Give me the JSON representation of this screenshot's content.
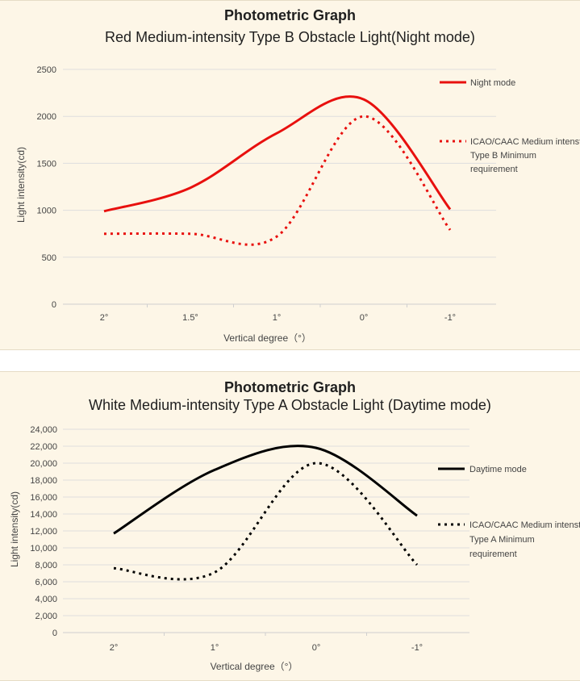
{
  "chart_data": [
    {
      "type": "line",
      "title": "Photometric Graph",
      "subtitle": "Red Medium-intensity Type B Obstacle Light(Night mode)",
      "xlabel": "Vertical degree（°）",
      "ylabel": "Light intensity(cd)",
      "x_ticks": [
        "2°",
        "1.5°",
        "1°",
        "0°",
        "-1°"
      ],
      "y_ticks": [
        "0",
        "500",
        "1000",
        "1500",
        "2000",
        "2500"
      ],
      "ylim": [
        0,
        2500
      ],
      "grid": true,
      "legend_position": "right",
      "colors": {
        "main": "#e8100e",
        "min": "#e8100e"
      },
      "series": [
        {
          "name": "Night mode",
          "style": "solid",
          "x": [
            2,
            1.5,
            1,
            0,
            -1
          ],
          "values": [
            990,
            1240,
            1820,
            2180,
            1010
          ]
        },
        {
          "name": "ICAO/CAAC Medium intensty Type B Minimum requirement",
          "style": "dotted",
          "x": [
            2,
            1.5,
            1,
            0,
            -1
          ],
          "values": [
            750,
            750,
            720,
            2000,
            790
          ]
        }
      ]
    },
    {
      "type": "line",
      "title": "Photometric Graph",
      "subtitle": "White Medium-intensity Type A Obstacle Light (Daytime mode)",
      "xlabel": "Vertical degree（°）",
      "ylabel": "Light intensity(cd)",
      "x_ticks": [
        "2°",
        "1°",
        "0°",
        "-1°"
      ],
      "y_ticks": [
        "0",
        "2,000",
        "4,000",
        "6,000",
        "8,000",
        "10,000",
        "12,000",
        "14,000",
        "16,000",
        "18,000",
        "20,000",
        "22,000",
        "24,000"
      ],
      "ylim": [
        0,
        24000
      ],
      "grid": true,
      "legend_position": "right",
      "colors": {
        "main": "#000000",
        "min": "#000000"
      },
      "series": [
        {
          "name": "Daytime mode",
          "style": "solid",
          "x": [
            2,
            1,
            0,
            -1
          ],
          "values": [
            11700,
            19200,
            21800,
            13800
          ]
        },
        {
          "name": "ICAO/CAAC Medium intensty Type A Minimum requirement",
          "style": "dotted",
          "x": [
            2,
            1,
            0,
            -1
          ],
          "values": [
            7600,
            7100,
            20000,
            8000
          ]
        }
      ]
    }
  ]
}
